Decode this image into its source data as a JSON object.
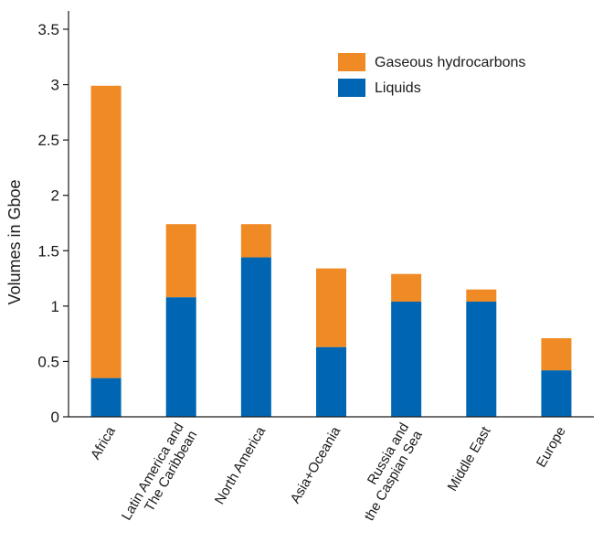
{
  "chart_data": {
    "type": "bar",
    "stacked": true,
    "categories": [
      "Africa",
      "Latin America and The Caribbean",
      "North America",
      "Asia+Oceania",
      "Russia and the Caspian Sea",
      "Middle East",
      "Europe"
    ],
    "category_label_lines": [
      [
        "Africa"
      ],
      [
        "Latin America and",
        "The Caribbean"
      ],
      [
        "North America"
      ],
      [
        "Asia+Oceania"
      ],
      [
        "Russia and",
        "the Caspian Sea"
      ],
      [
        "Middle East"
      ],
      [
        "Europe"
      ]
    ],
    "series": [
      {
        "name": "Liquids",
        "color": "#0066b3",
        "values": [
          0.35,
          1.08,
          1.44,
          0.63,
          1.04,
          1.04,
          0.42
        ]
      },
      {
        "name": "Gaseous hydrocarbons",
        "color": "#f08a24",
        "values": [
          2.64,
          0.66,
          0.3,
          0.71,
          0.25,
          0.11,
          0.29
        ]
      }
    ],
    "legend_order": [
      "Gaseous hydrocarbons",
      "Liquids"
    ],
    "legend_position": "top-right",
    "title": "",
    "xlabel": "",
    "ylabel": "Volumes in Gboe",
    "ylim": [
      0,
      3.5
    ],
    "yticks": [
      "0",
      "0.5",
      "1",
      "1.5",
      "2",
      "2.5",
      "3",
      "3.5"
    ],
    "grid": false
  }
}
